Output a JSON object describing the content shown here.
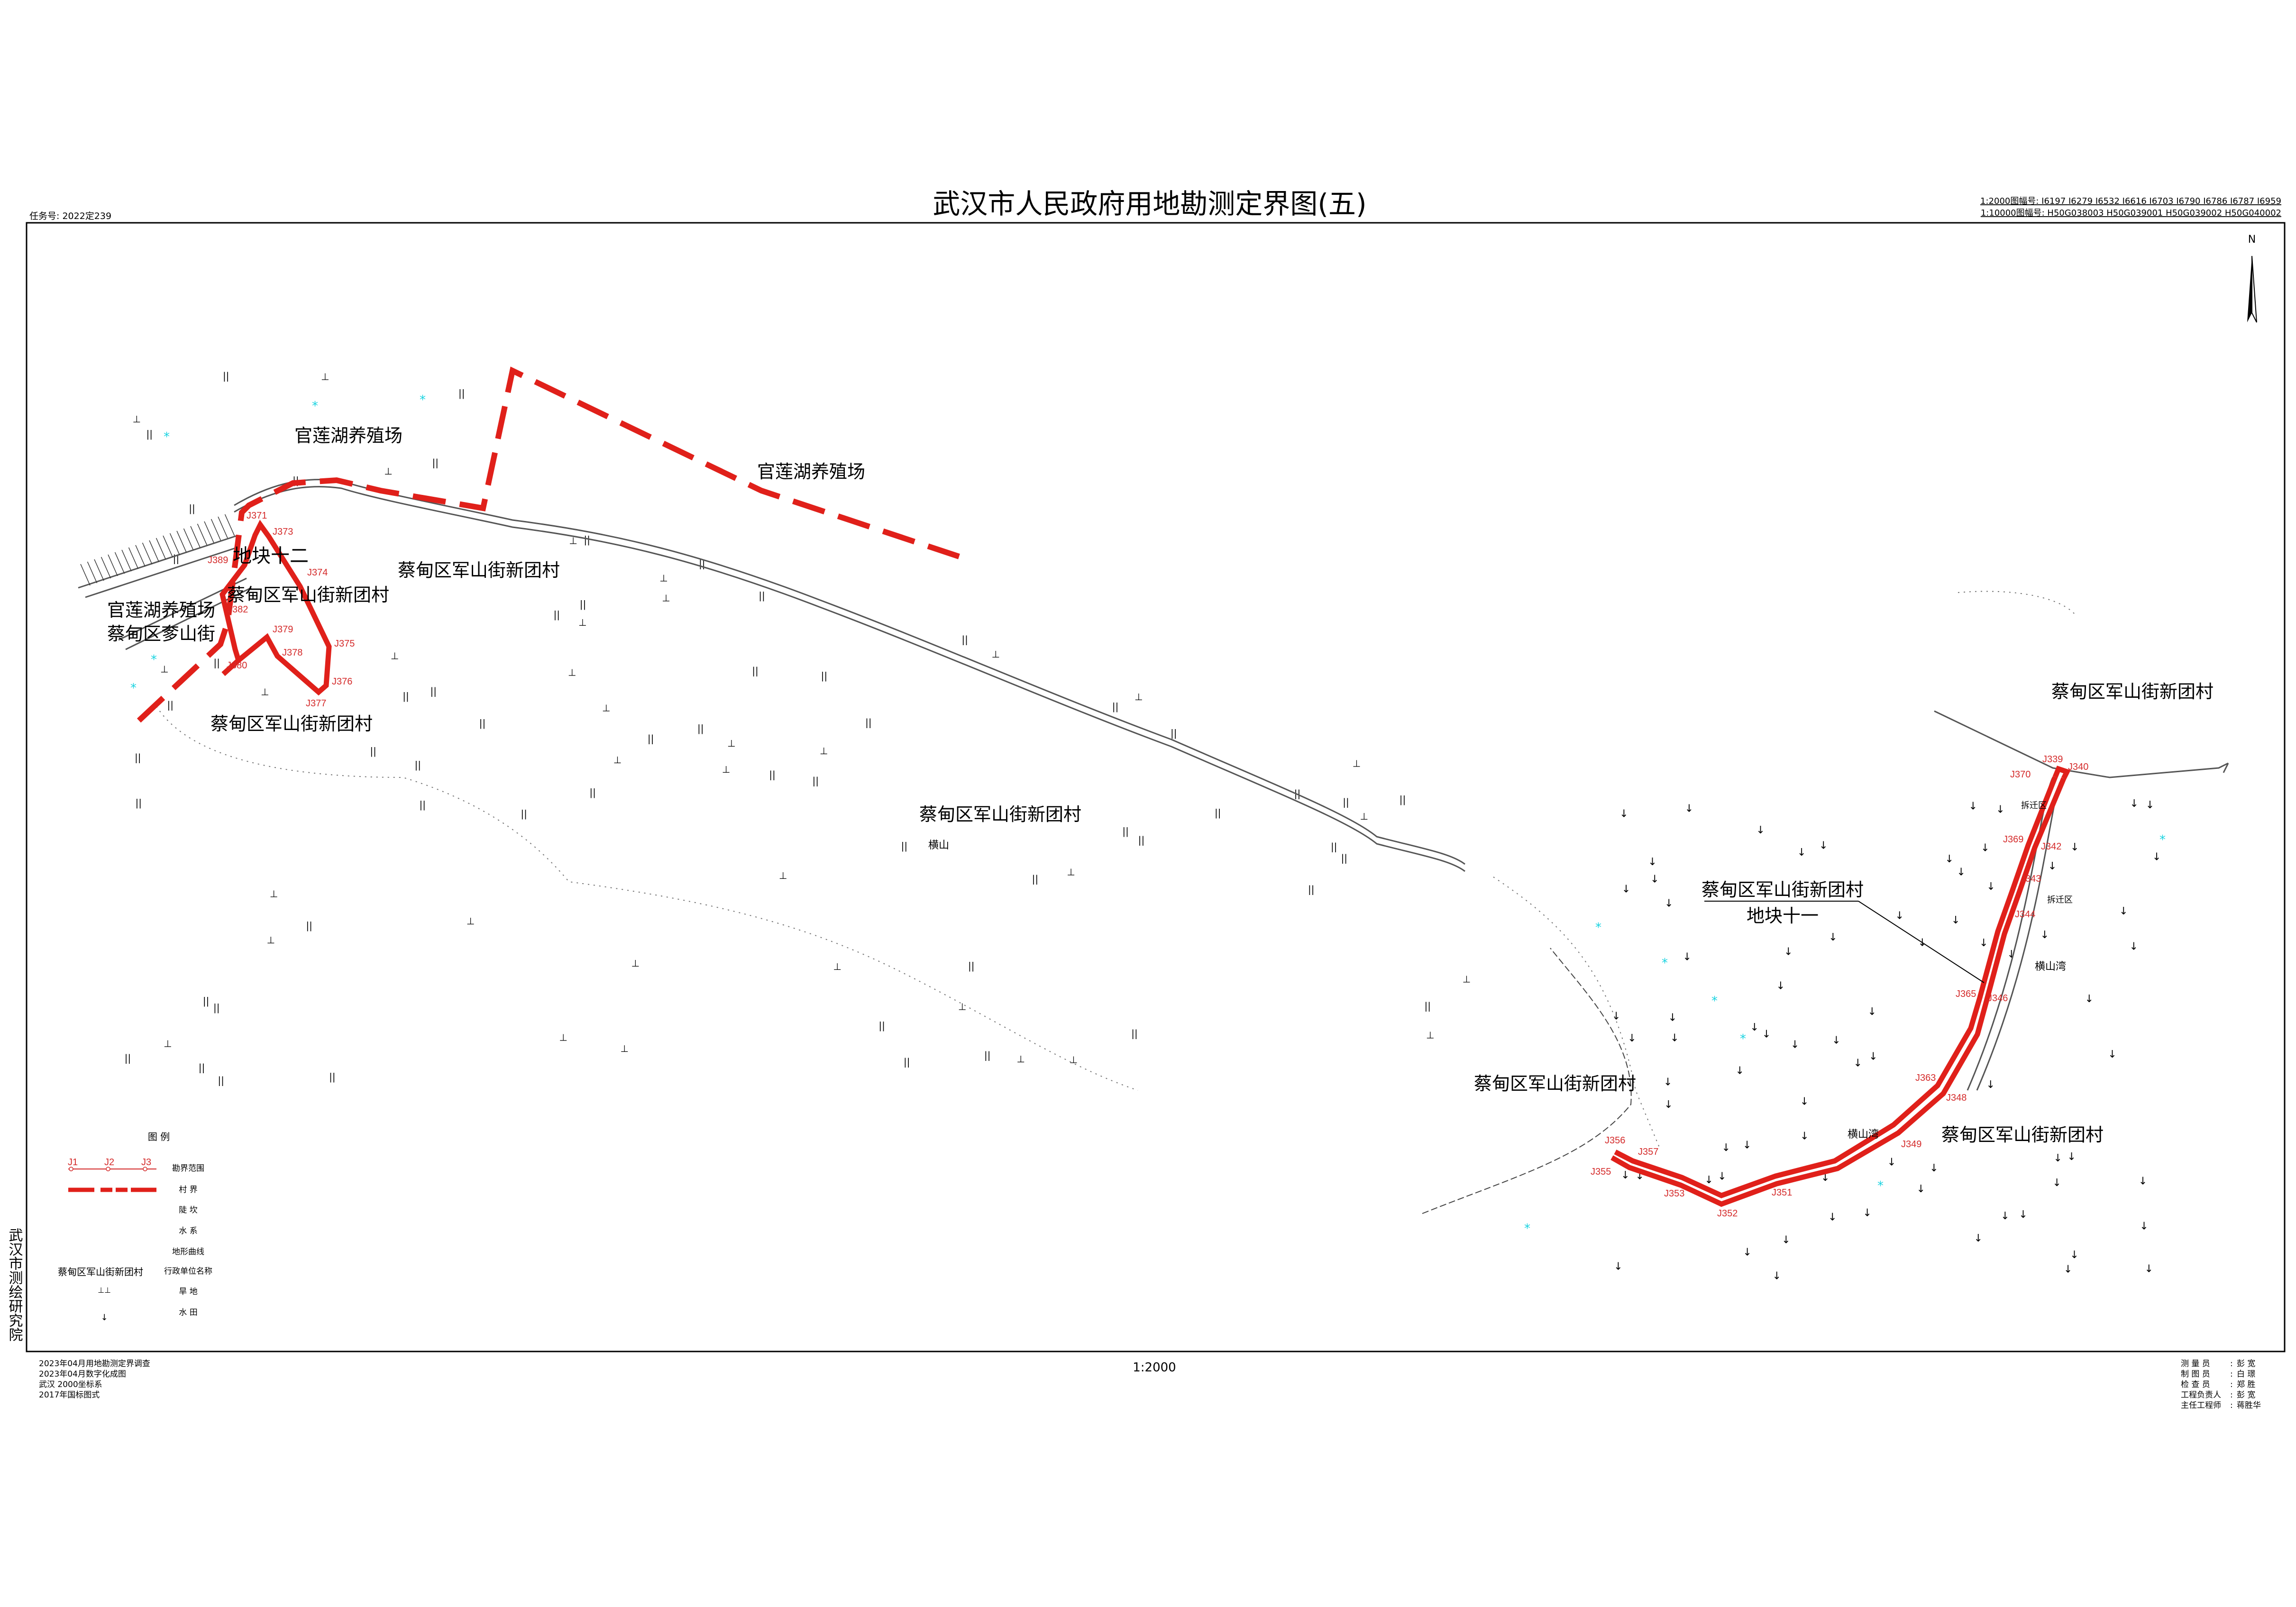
{
  "header": {
    "title": "武汉市人民政府用地勘测定界图(五)",
    "task_number": "任务号: 2022定239",
    "sheet_2000": "1:2000图幅号: I6197 I6279 I6532 I6616 I6703 I6790 I6786 I6787 I6959",
    "sheet_10000": "1:10000图幅号: H50G038003 H50G039001 H50G039002 H50G040002",
    "north": "N"
  },
  "side_label": "武汉市测绘研究院",
  "scale": "1:2000",
  "notes": [
    "2023年04月用地勘测定界调查",
    "2023年04月数字化成图",
    "武汉 2000坐标系",
    "2017年国标图式"
  ],
  "staff": [
    {
      "role": "测 量 员",
      "name": "彭 宽"
    },
    {
      "role": "制 图 员",
      "name": "白 璟"
    },
    {
      "role": "检 查 员",
      "name": "郑 胜"
    },
    {
      "role": "工程负责人",
      "name": "彭 宽"
    },
    {
      "role": "主任工程师",
      "name": "蒋胜华"
    }
  ],
  "legend": {
    "title": "图 例",
    "sample_points": [
      "J1",
      "J2",
      "J3"
    ],
    "sample_admin_name": "蔡甸区军山街新团村",
    "items": [
      "勘界范围",
      "村 界",
      "陡 坎",
      "水 系",
      "地形曲线",
      "行政单位名称",
      "旱 地",
      "水 田"
    ]
  },
  "colors": {
    "boundary": "#e0201a",
    "point_label": "#d42a2a",
    "water": "#19d3e0"
  },
  "map": {
    "labels": {
      "farm_1": "官莲湖养殖场",
      "farm_2": "官莲湖养殖场",
      "farm_3": "官莲湖养殖场",
      "zhashan": "蔡甸区奓山街",
      "plot12": "地块十二",
      "village_a": "蔡甸区军山街新团村",
      "village_b": "蔡甸区军山街新团村",
      "village_c": "蔡甸区军山街新团村",
      "village_d": "蔡甸区军山街新团村",
      "village_e": "蔡甸区军山街新团村",
      "village_f": "蔡甸区军山街新团村",
      "village_g": "蔡甸区军山街新团村",
      "village_h": "蔡甸区军山街新团村",
      "plot11": "地块十一",
      "hengshan": "横山",
      "hengshanwan_1": "横山湾",
      "hengshanwan_2": "横山湾",
      "demolition_1": "拆迁区",
      "demolition_2": "拆迁区"
    },
    "plot12_points": [
      "J371",
      "J373",
      "J374",
      "J375",
      "J376",
      "J377",
      "J378",
      "J379",
      "J380",
      "J382",
      "J389"
    ],
    "plot11_points": [
      "J339",
      "J340",
      "J370",
      "J369",
      "J342",
      "J343",
      "J344",
      "J365",
      "J346",
      "J363",
      "J348",
      "J349",
      "J351",
      "J352",
      "J353",
      "J355",
      "J356",
      "J357"
    ]
  }
}
